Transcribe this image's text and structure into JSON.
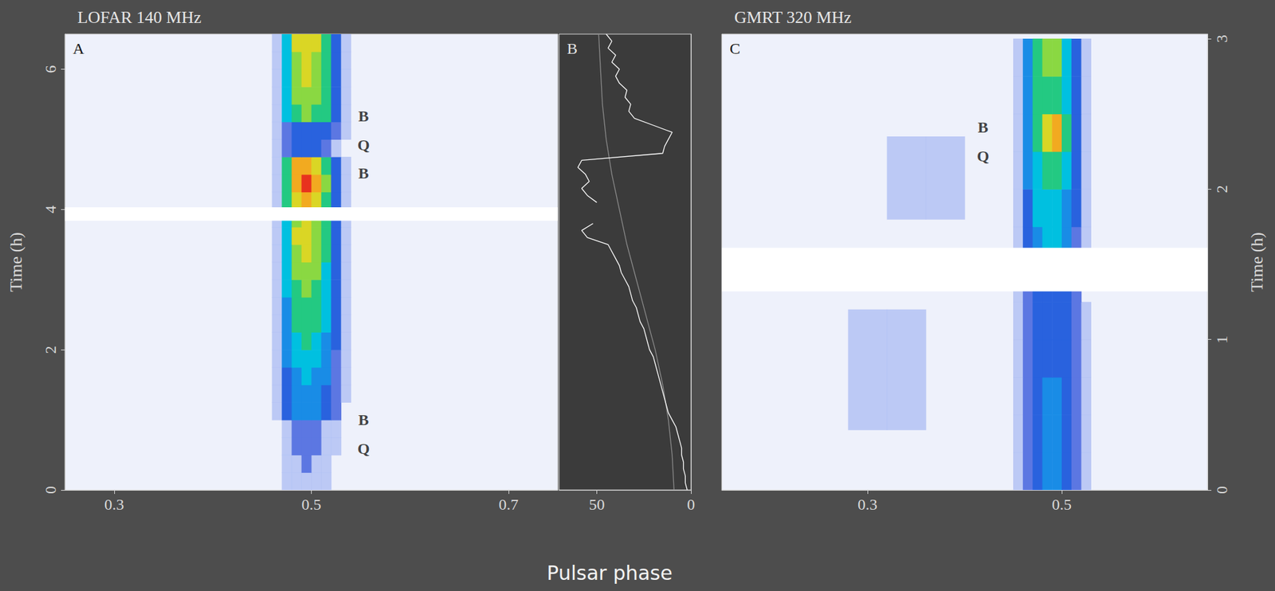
{
  "xlabel": "Pulsar phase",
  "chart_data": [
    {
      "type": "heatmap",
      "title": "LOFAR 140 MHz",
      "panel": "A",
      "xlim": [
        0.25,
        0.75
      ],
      "xticks": [
        0.3,
        0.5,
        0.7
      ],
      "ylim": [
        0,
        6.5
      ],
      "yticks": [
        0,
        2,
        4,
        6
      ],
      "ylabel": "Time (h)",
      "maps": [
        {
          "x_edges": [
            0.46,
            0.47,
            0.48,
            0.49,
            0.5,
            0.51,
            0.52,
            0.53,
            0.54
          ],
          "y_edges": [
            0,
            0.25,
            0.5,
            0.75,
            1,
            1.25,
            1.5,
            1.75,
            2,
            2.25,
            2.5,
            2.75,
            3,
            3.25,
            3.5,
            3.75,
            4,
            4.25,
            4.5,
            4.75,
            5,
            5.25,
            5.5,
            5.75,
            6,
            6.25,
            6.5
          ],
          "values": [
            [
              0,
              1,
              1,
              1,
              1,
              1,
              0,
              0
            ],
            [
              0,
              1,
              1,
              2,
              1,
              1,
              0,
              0
            ],
            [
              0,
              1,
              2,
              2,
              2,
              1,
              1,
              0
            ],
            [
              0,
              1,
              2,
              2,
              2,
              1,
              1,
              0
            ],
            [
              1,
              3,
              4,
              4,
              4,
              3,
              2,
              0
            ],
            [
              1,
              3,
              4,
              4,
              4,
              3,
              2,
              1
            ],
            [
              1,
              3,
              4,
              5,
              4,
              4,
              2,
              1
            ],
            [
              1,
              4,
              5,
              5,
              5,
              4,
              2,
              1
            ],
            [
              1,
              4,
              5,
              6,
              5,
              4,
              3,
              1
            ],
            [
              1,
              4,
              6,
              6,
              6,
              5,
              3,
              1
            ],
            [
              1,
              4,
              6,
              6,
              6,
              5,
              3,
              1
            ],
            [
              1,
              5,
              6,
              7,
              6,
              5,
              3,
              1
            ],
            [
              1,
              5,
              7,
              7,
              7,
              5,
              3,
              1
            ],
            [
              1,
              5,
              7,
              8,
              7,
              6,
              3,
              1
            ],
            [
              1,
              5,
              8,
              8,
              7,
              6,
              3,
              1
            ],
            [
              1,
              5,
              7,
              8,
              7,
              6,
              3,
              1
            ],
            [
              1,
              6,
              8,
              9,
              8,
              6,
              3,
              1
            ],
            [
              1,
              6,
              9,
              10,
              9,
              7,
              3,
              1
            ],
            [
              1,
              6,
              9,
              9,
              8,
              6,
              3,
              1
            ],
            [
              1,
              2,
              3,
              3,
              3,
              2,
              1,
              0
            ],
            [
              1,
              2,
              3,
              3,
              3,
              3,
              2,
              1
            ],
            [
              1,
              5,
              6,
              7,
              6,
              6,
              3,
              1
            ],
            [
              1,
              5,
              7,
              7,
              7,
              6,
              3,
              1
            ],
            [
              1,
              5,
              7,
              8,
              7,
              6,
              3,
              1
            ],
            [
              1,
              5,
              7,
              8,
              7,
              6,
              3,
              1
            ],
            [
              1,
              5,
              8,
              8,
              8,
              6,
              3,
              1
            ]
          ]
        }
      ],
      "gaps": [
        [
          3.84,
          4.03
        ]
      ],
      "annotations": [
        {
          "text": "B",
          "x": 0.553,
          "y": 5.33
        },
        {
          "text": "Q",
          "x": 0.553,
          "y": 4.92
        },
        {
          "text": "B",
          "x": 0.553,
          "y": 4.52
        },
        {
          "text": "B",
          "x": 0.553,
          "y": 1.0
        },
        {
          "text": "Q",
          "x": 0.553,
          "y": 0.59
        }
      ]
    },
    {
      "type": "line",
      "panel": "B",
      "xlim": [
        70,
        0
      ],
      "xticks": [
        50,
        0
      ],
      "ylim": [
        0,
        6.5
      ],
      "tick_labels": "x",
      "series": [
        {
          "color": "#8a8a8a",
          "x": [
            9,
            10,
            12,
            15,
            19,
            24,
            29,
            34,
            38,
            42,
            45,
            47,
            48,
            49
          ],
          "y": [
            0,
            0.5,
            1,
            1.5,
            2,
            2.5,
            3,
            3.5,
            4,
            4.5,
            5,
            5.5,
            6,
            6.5
          ]
        },
        {
          "color": "#ffffff",
          "x": [
            2,
            3,
            3,
            4,
            4,
            5,
            5,
            6,
            7,
            8,
            10,
            12,
            13,
            14,
            15,
            16,
            17,
            18,
            19,
            20,
            22,
            23,
            24,
            25,
            27,
            28,
            29,
            31,
            32,
            33,
            35,
            37,
            38,
            40,
            42,
            44,
            55,
            58,
            52,
            null,
            null,
            50,
            55,
            58,
            54,
            56,
            60,
            58,
            15,
            14,
            12,
            10,
            20,
            30,
            33,
            32,
            35,
            34,
            38,
            40,
            38,
            42,
            40,
            44,
            42,
            45
          ],
          "y": [
            0,
            0.1,
            0.2,
            0.3,
            0.4,
            0.5,
            0.6,
            0.7,
            0.8,
            0.9,
            1,
            1.1,
            1.2,
            1.3,
            1.4,
            1.5,
            1.6,
            1.7,
            1.8,
            1.9,
            2,
            2.1,
            2.2,
            2.3,
            2.4,
            2.5,
            2.6,
            2.7,
            2.8,
            2.9,
            3,
            3.1,
            3.2,
            3.3,
            3.4,
            3.5,
            3.6,
            3.7,
            3.8,
            3.9,
            4,
            4.1,
            4.2,
            4.3,
            4.4,
            4.5,
            4.6,
            4.7,
            4.8,
            4.9,
            5,
            5.1,
            5.2,
            5.3,
            5.4,
            5.5,
            5.6,
            5.7,
            5.8,
            5.9,
            6,
            6.1,
            6.2,
            6.3,
            6.4,
            6.5
          ]
        }
      ]
    },
    {
      "type": "heatmap",
      "title": "GMRT 320 MHz",
      "panel": "C",
      "xlim": [
        0.15,
        0.65
      ],
      "xticks": [
        0.3,
        0.5
      ],
      "ylim": [
        0,
        3.03
      ],
      "yticks": [
        0,
        1,
        2,
        3
      ],
      "ylabel": "Time (h)",
      "maps": [
        {
          "x_edges": [
            0.45,
            0.46,
            0.47,
            0.48,
            0.49,
            0.5,
            0.51,
            0.52,
            0.53
          ],
          "y_edges": [
            0,
            0.25,
            0.5,
            0.75,
            1,
            1.25,
            1.5,
            1.75,
            2,
            2.25,
            2.5,
            2.75,
            3
          ],
          "values": [
            [
              1,
              2,
              3,
              4,
              4,
              3,
              2,
              1
            ],
            [
              1,
              2,
              3,
              4,
              4,
              3,
              2,
              1
            ],
            [
              1,
              2,
              3,
              4,
              4,
              3,
              2,
              1
            ],
            [
              1,
              2,
              3,
              3,
              3,
              3,
              2,
              1
            ],
            [
              1,
              2,
              3,
              3,
              3,
              3,
              2,
              1
            ],
            [
              1,
              2,
              3,
              3,
              3,
              3,
              2,
              0
            ],
            [
              1,
              3,
              4,
              5,
              5,
              4,
              2,
              1
            ],
            [
              1,
              3,
              5,
              5,
              5,
              4,
              3,
              1
            ],
            [
              1,
              4,
              5,
              6,
              6,
              5,
              3,
              1
            ],
            [
              1,
              4,
              6,
              8,
              9,
              6,
              3,
              1
            ],
            [
              1,
              4,
              6,
              6,
              6,
              5,
              3,
              1
            ],
            [
              1,
              4,
              6,
              7,
              7,
              5,
              3,
              1
            ]
          ]
        },
        {
          "x_edges": [
            0.28,
            0.32,
            0.36,
            0.4
          ],
          "y_edges": [
            0.4,
            1.2,
            1.8,
            2.35
          ],
          "values": [
            [
              1,
              1,
              0
            ],
            [
              0,
              0,
              0
            ],
            [
              0,
              1,
              1
            ]
          ]
        }
      ],
      "gaps": [
        [
          1.32,
          1.61
        ]
      ],
      "annotations": [
        {
          "text": "B",
          "x": 0.419,
          "y": 2.41
        },
        {
          "text": "Q",
          "x": 0.419,
          "y": 2.22
        }
      ]
    }
  ]
}
